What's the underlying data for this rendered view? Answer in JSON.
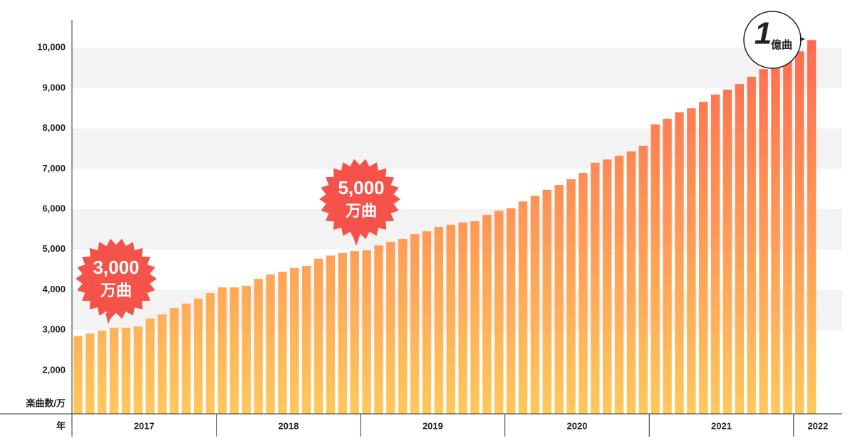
{
  "chart_data": {
    "type": "bar",
    "y_label": "楽曲数/万",
    "x_label": "年",
    "categories": [
      null,
      null,
      null,
      null,
      null,
      null,
      null,
      null,
      null,
      null,
      null,
      null,
      null,
      null,
      null,
      null,
      null,
      null,
      null,
      null,
      null,
      null,
      null,
      null,
      null,
      null,
      null,
      null,
      null,
      null,
      null,
      null,
      null,
      null,
      null,
      null,
      null,
      null,
      null,
      null,
      null,
      null,
      null,
      null,
      null,
      null,
      null,
      null,
      null,
      null,
      null,
      null,
      null,
      null,
      null,
      null,
      null,
      null,
      null,
      null,
      null,
      null
    ],
    "years": [
      "2017",
      "2018",
      "2019",
      "2020",
      "2021",
      "2022"
    ],
    "values": [
      2860,
      2920,
      2990,
      3060,
      3060,
      3090,
      3290,
      3390,
      3550,
      3660,
      3780,
      3920,
      4060,
      4060,
      4100,
      4270,
      4380,
      4450,
      4540,
      4590,
      4770,
      4850,
      4910,
      4960,
      4980,
      5100,
      5190,
      5260,
      5380,
      5450,
      5560,
      5610,
      5670,
      5700,
      5860,
      5960,
      6020,
      6190,
      6330,
      6480,
      6600,
      6740,
      6900,
      7150,
      7230,
      7320,
      7430,
      7570,
      8100,
      8240,
      8400,
      8500,
      8660,
      8840,
      8960,
      9100,
      9280,
      9470,
      9580,
      9720,
      9910,
      10190
    ],
    "color_top": "#ff6a50",
    "color_bottom": "#ffc85c",
    "ylim": [
      925,
      10690
    ],
    "yticks": [
      {
        "value": 2000,
        "label": "2,000"
      },
      {
        "value": 3000,
        "label": "3,000"
      },
      {
        "value": 4000,
        "label": "4,000"
      },
      {
        "value": 5000,
        "label": "5,000"
      },
      {
        "value": 6000,
        "label": "6,000"
      },
      {
        "value": 7000,
        "label": "7,000"
      },
      {
        "value": 8000,
        "label": "8,000"
      },
      {
        "value": 9000,
        "label": "9,000"
      },
      {
        "value": 10000,
        "label": "10,000"
      }
    ],
    "band_color": "#f3f3f3",
    "annotations": [
      {
        "number": "3,000",
        "unit": "万曲"
      },
      {
        "number": "5,000",
        "unit": "万曲"
      },
      {
        "number": "1",
        "unit": "億曲"
      }
    ]
  }
}
